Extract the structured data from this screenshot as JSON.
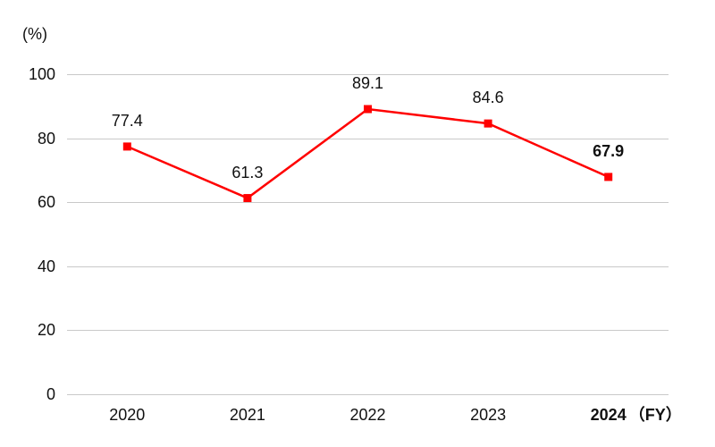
{
  "chart_data": {
    "type": "line",
    "title": "",
    "unit_label": "(%)",
    "categories": [
      "2020",
      "2021",
      "2022",
      "2023",
      "2024"
    ],
    "x_suffix": "（FY）",
    "values": [
      77.4,
      61.3,
      89.1,
      84.6,
      67.9
    ],
    "value_labels": [
      "77.4",
      "61.3",
      "89.1",
      "84.6",
      "67.9"
    ],
    "emphasized_index": 4,
    "y_ticks": [
      0,
      20,
      40,
      60,
      80,
      100
    ],
    "ylim": [
      0,
      100
    ],
    "grid": true,
    "legend": "none",
    "marker": "square",
    "line_color": "#ff0000",
    "grid_color": "#c9c9c9",
    "text_color": "#111111",
    "background_color": "#ffffff"
  }
}
